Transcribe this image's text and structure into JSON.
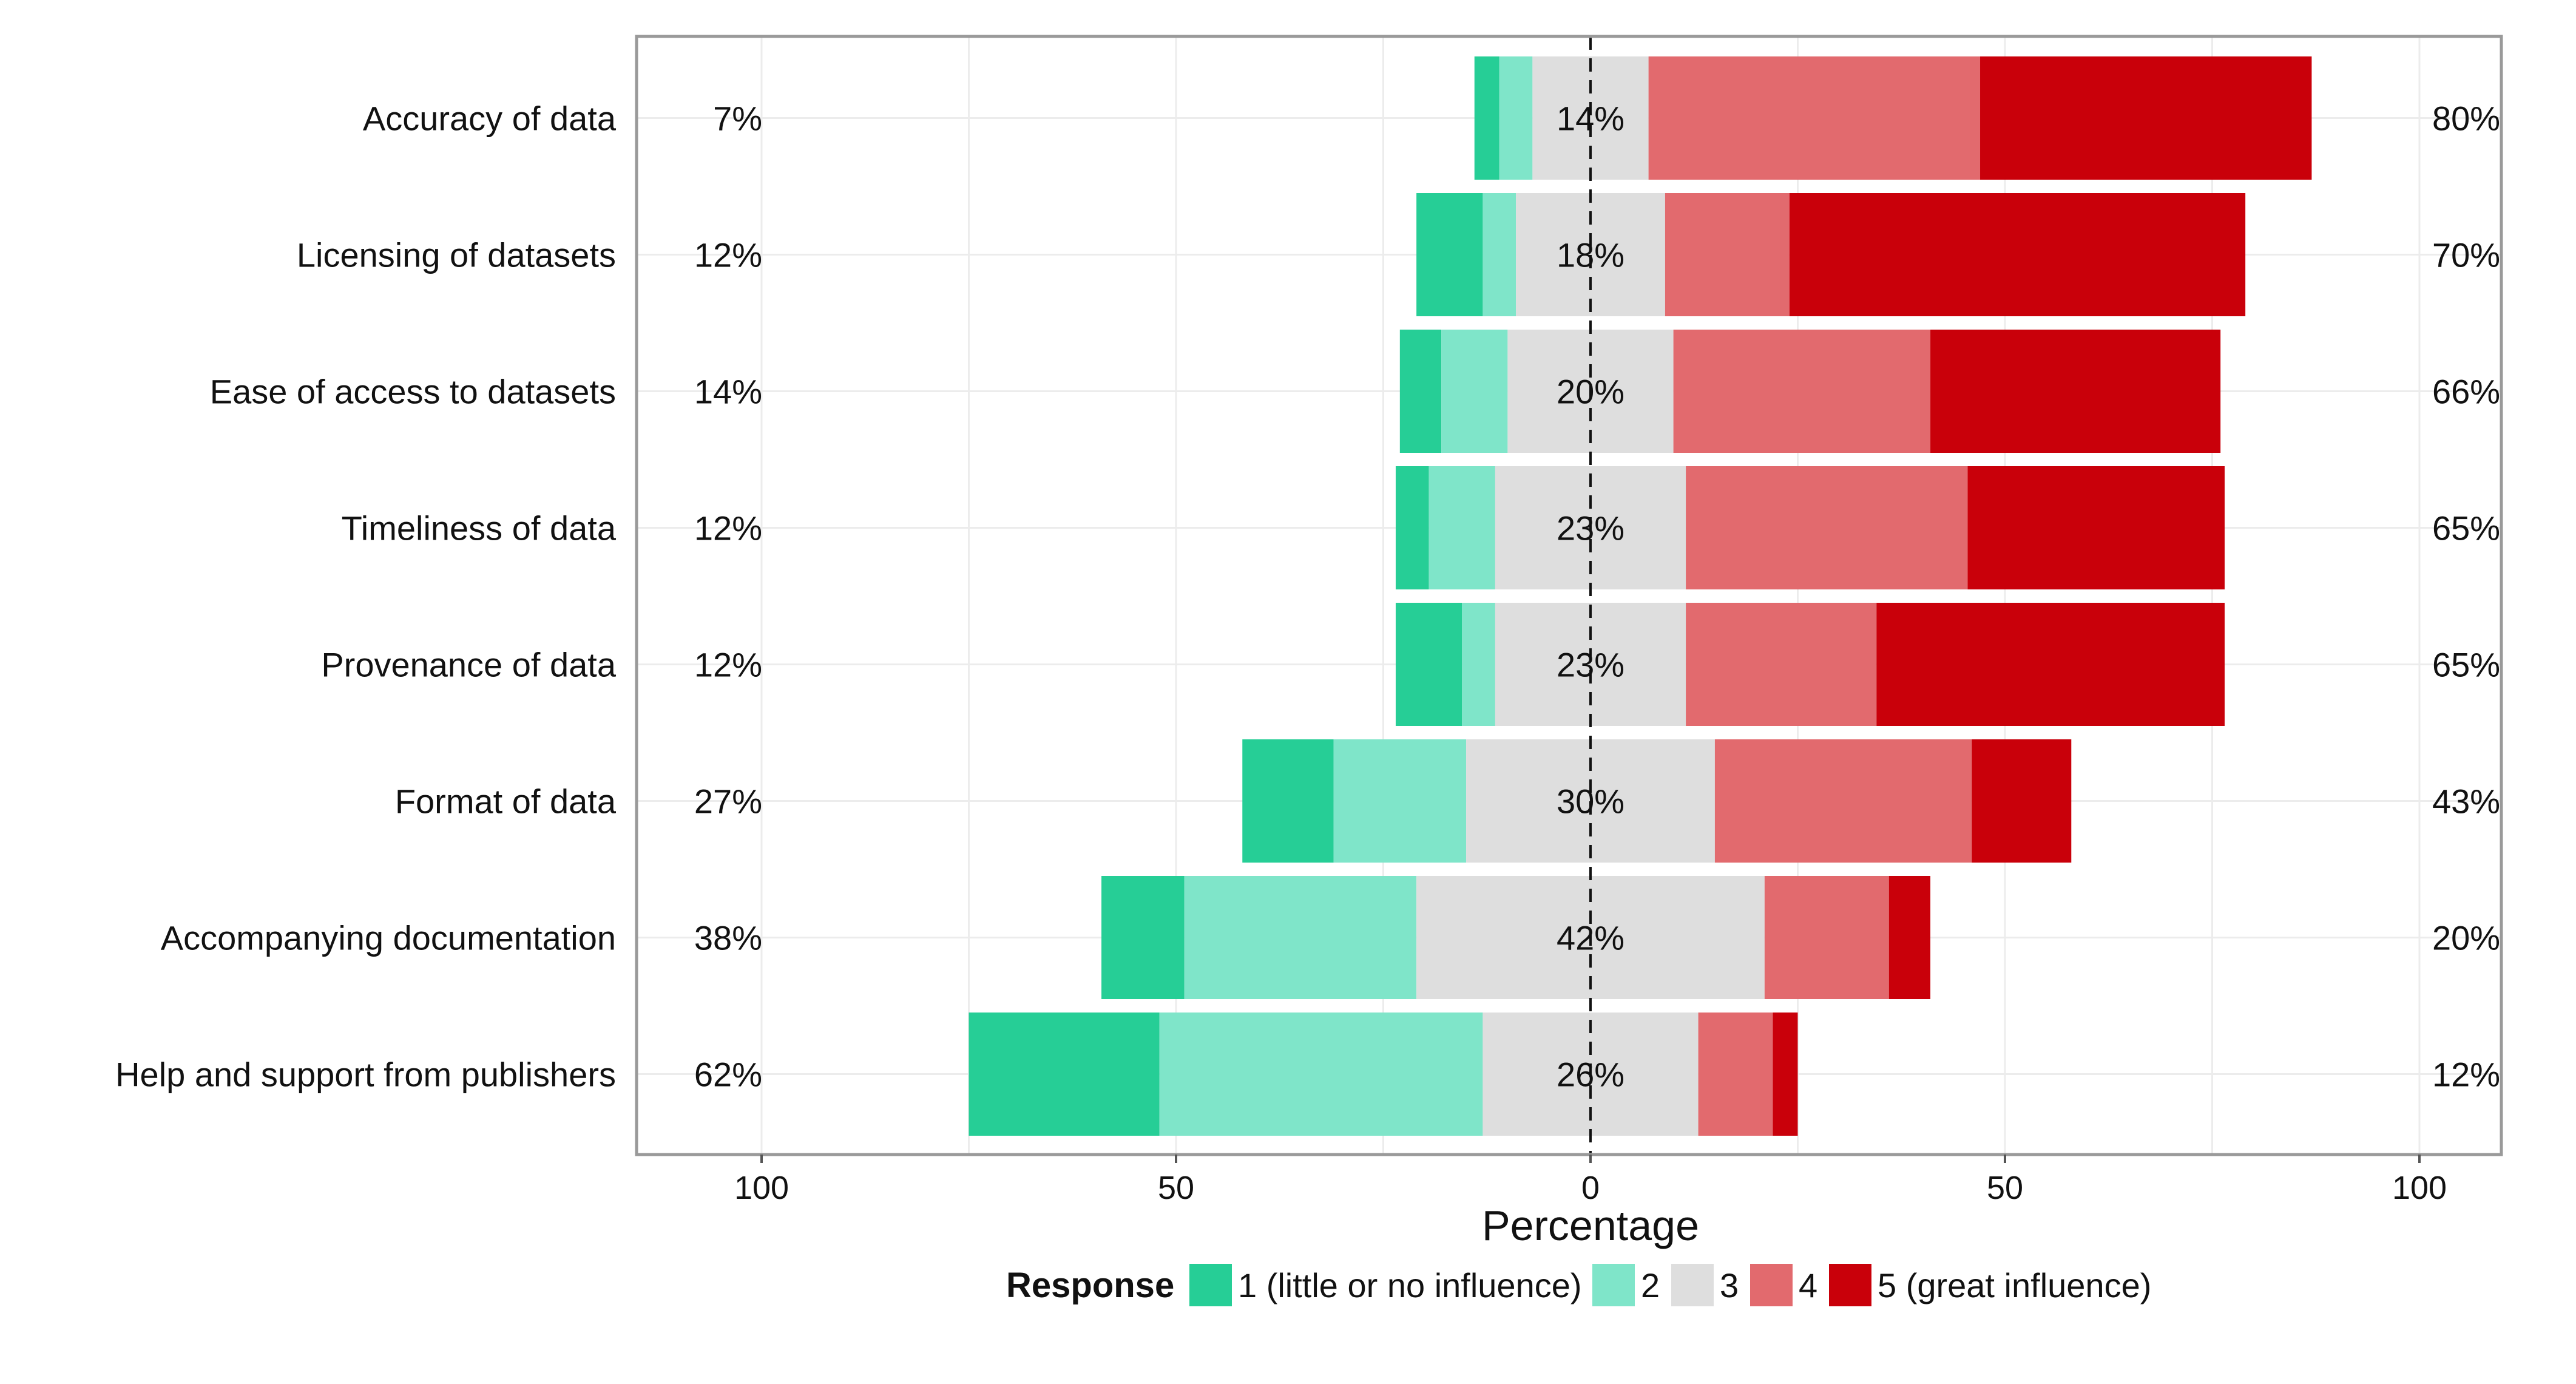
{
  "chart_data": {
    "type": "bar",
    "orientation": "horizontal",
    "layout": "diverging-stacked",
    "xlabel": "Percentage",
    "xlim": [
      -100,
      100
    ],
    "x_ticks": [
      -100,
      -50,
      0,
      50,
      100
    ],
    "x_tick_labels": [
      "100",
      "50",
      "0",
      "50",
      "100"
    ],
    "grid": true,
    "legend": {
      "title": "Response",
      "placement": "bottom",
      "items": [
        {
          "label": "1 (little or no influence)",
          "color": "#26CE96"
        },
        {
          "label": "2",
          "color": "#7FE5C9"
        },
        {
          "label": "3",
          "color": "#DEDEDE"
        },
        {
          "label": "4",
          "color": "#E26A6E"
        },
        {
          "label": "5 (great influence)",
          "color": "#C9000A"
        }
      ]
    },
    "categories": [
      "Accuracy of data",
      "Licensing of datasets",
      "Ease of access to datasets",
      "Timeliness of data",
      "Provenance of data",
      "Format of data",
      "Accompanying documentation",
      "Help and support from publishers"
    ],
    "series": [
      {
        "name": "1 (little or no influence)",
        "values": [
          3,
          8,
          5,
          4,
          8,
          11,
          10,
          23
        ]
      },
      {
        "name": "2",
        "values": [
          4,
          4,
          8,
          8,
          4,
          16,
          28,
          39
        ]
      },
      {
        "name": "3",
        "values": [
          14,
          18,
          20,
          23,
          23,
          30,
          42,
          26
        ]
      },
      {
        "name": "4",
        "values": [
          40,
          15,
          31,
          34,
          23,
          31,
          15,
          9
        ]
      },
      {
        "name": "5 (great influence)",
        "values": [
          40,
          55,
          35,
          31,
          42,
          12,
          5,
          3
        ]
      }
    ],
    "left_percent_labels": [
      "7%",
      "12%",
      "14%",
      "12%",
      "12%",
      "27%",
      "38%",
      "62%"
    ],
    "center_percent_labels": [
      "14%",
      "18%",
      "20%",
      "23%",
      "23%",
      "30%",
      "42%",
      "26%"
    ],
    "right_percent_labels": [
      "80%",
      "70%",
      "66%",
      "65%",
      "65%",
      "43%",
      "20%",
      "12%"
    ]
  }
}
